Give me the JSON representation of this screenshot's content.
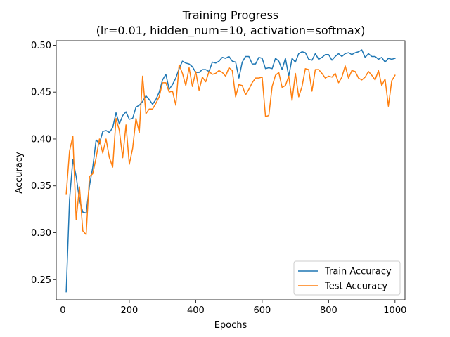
{
  "chart_data": {
    "type": "line",
    "title": "Training Progress",
    "subtitle": "(lr=0.01, hidden_num=10, activation=softmax)",
    "xlabel": "Epochs",
    "ylabel": "Accuracy",
    "xlim": [
      -20,
      1030
    ],
    "ylim": [
      0.2285,
      0.5048
    ],
    "xticks": [
      0,
      200,
      400,
      600,
      800,
      1000
    ],
    "yticks": [
      0.25,
      0.3,
      0.35,
      0.4,
      0.45,
      0.5
    ],
    "ytick_labels": [
      "0.25",
      "0.30",
      "0.35",
      "0.40",
      "0.45",
      "0.50"
    ],
    "grid": false,
    "legend_position": "lower-right",
    "x": [
      10,
      20,
      30,
      40,
      50,
      60,
      70,
      80,
      90,
      100,
      110,
      120,
      130,
      140,
      150,
      160,
      170,
      180,
      190,
      200,
      210,
      220,
      230,
      240,
      250,
      260,
      270,
      280,
      290,
      300,
      310,
      320,
      330,
      340,
      350,
      360,
      370,
      380,
      390,
      400,
      410,
      420,
      430,
      440,
      450,
      460,
      470,
      480,
      490,
      500,
      510,
      520,
      530,
      540,
      550,
      560,
      570,
      580,
      590,
      600,
      610,
      620,
      630,
      640,
      650,
      660,
      670,
      680,
      690,
      700,
      710,
      720,
      730,
      740,
      750,
      760,
      770,
      780,
      790,
      800,
      810,
      820,
      830,
      840,
      850,
      860,
      870,
      880,
      890,
      900,
      910,
      920,
      930,
      940,
      950,
      960,
      970,
      980,
      990,
      1000
    ],
    "series": [
      {
        "name": "Train Accuracy",
        "color": "#1f77b4",
        "values": [
          0.237,
          0.335,
          0.378,
          0.36,
          0.335,
          0.322,
          0.321,
          0.35,
          0.37,
          0.399,
          0.395,
          0.408,
          0.409,
          0.407,
          0.412,
          0.428,
          0.416,
          0.425,
          0.429,
          0.421,
          0.422,
          0.434,
          0.436,
          0.44,
          0.446,
          0.442,
          0.437,
          0.442,
          0.45,
          0.463,
          0.469,
          0.453,
          0.458,
          0.465,
          0.475,
          0.483,
          0.481,
          0.48,
          0.477,
          0.471,
          0.471,
          0.474,
          0.474,
          0.472,
          0.482,
          0.481,
          0.483,
          0.487,
          0.486,
          0.488,
          0.483,
          0.482,
          0.465,
          0.482,
          0.488,
          0.488,
          0.48,
          0.48,
          0.487,
          0.486,
          0.475,
          0.476,
          0.475,
          0.486,
          0.483,
          0.474,
          0.486,
          0.467,
          0.486,
          0.482,
          0.491,
          0.493,
          0.492,
          0.485,
          0.484,
          0.491,
          0.485,
          0.487,
          0.49,
          0.49,
          0.484,
          0.488,
          0.491,
          0.488,
          0.491,
          0.492,
          0.49,
          0.492,
          0.493,
          0.495,
          0.487,
          0.491,
          0.488,
          0.488,
          0.485,
          0.487,
          0.482,
          0.486,
          0.485,
          0.486
        ]
      },
      {
        "name": "Test Accuracy",
        "color": "#ff7f0e",
        "values": [
          0.341,
          0.387,
          0.403,
          0.314,
          0.349,
          0.302,
          0.298,
          0.36,
          0.363,
          0.38,
          0.4,
          0.385,
          0.4,
          0.38,
          0.37,
          0.422,
          0.409,
          0.38,
          0.415,
          0.373,
          0.39,
          0.422,
          0.407,
          0.467,
          0.427,
          0.432,
          0.432,
          0.438,
          0.445,
          0.46,
          0.46,
          0.45,
          0.451,
          0.436,
          0.479,
          0.47,
          0.457,
          0.476,
          0.456,
          0.472,
          0.452,
          0.466,
          0.461,
          0.472,
          0.469,
          0.47,
          0.473,
          0.471,
          0.467,
          0.476,
          0.473,
          0.445,
          0.458,
          0.457,
          0.447,
          0.453,
          0.46,
          0.465,
          0.465,
          0.466,
          0.424,
          0.425,
          0.456,
          0.468,
          0.471,
          0.455,
          0.457,
          0.467,
          0.441,
          0.47,
          0.445,
          0.456,
          0.475,
          0.474,
          0.451,
          0.474,
          0.474,
          0.47,
          0.465,
          0.467,
          0.466,
          0.47,
          0.46,
          0.466,
          0.478,
          0.465,
          0.473,
          0.472,
          0.465,
          0.463,
          0.466,
          0.472,
          0.468,
          0.463,
          0.473,
          0.457,
          0.464,
          0.435,
          0.462,
          0.468
        ]
      }
    ]
  }
}
